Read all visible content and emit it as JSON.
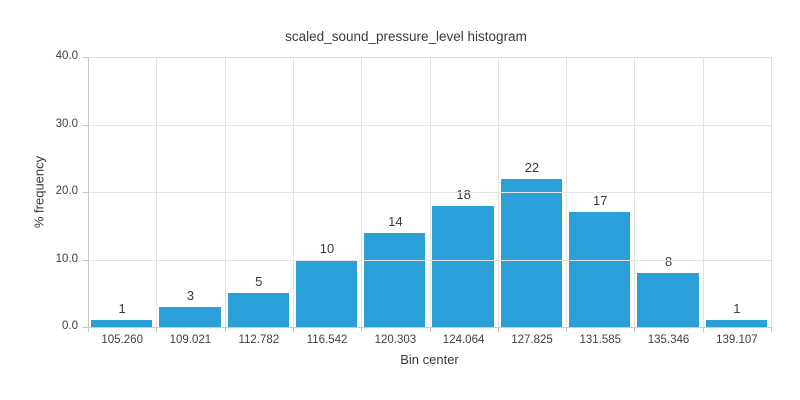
{
  "header": {
    "title": "scaled_sound_pressure_level histogram"
  },
  "chart_data": {
    "type": "bar",
    "title": "scaled_sound_pressure_level histogram",
    "categories": [
      "105.260",
      "109.021",
      "112.782",
      "116.542",
      "120.303",
      "124.064",
      "127.825",
      "131.585",
      "135.346",
      "139.107"
    ],
    "values": [
      1,
      3,
      5,
      10,
      14,
      18,
      22,
      17,
      8,
      1
    ],
    "bar_labels": [
      "1",
      "3",
      "5",
      "10",
      "14",
      "18",
      "22",
      "17",
      "8",
      "1"
    ],
    "xlabel": "Bin center",
    "ylabel": "% frequency",
    "ylim": [
      0,
      40
    ],
    "yticks": [
      0,
      10,
      20,
      30,
      40
    ],
    "ytick_labels": [
      "0.0",
      "10.0",
      "20.0",
      "30.0",
      "40.0"
    ],
    "grid": true,
    "legend": false,
    "colors": {
      "bar": "#2A9FD8",
      "grid": "#e3e3e3",
      "axis": "#c9c9c9",
      "text": "#3a3a3a"
    }
  }
}
